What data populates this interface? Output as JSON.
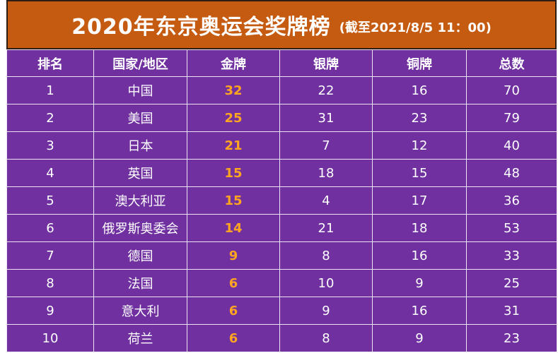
{
  "title": {
    "main": "2020年东京奥运会奖牌榜",
    "note": "(截至2021/8/5 11：00)"
  },
  "table": {
    "headers": [
      "排名",
      "国家/地区",
      "金牌",
      "银牌",
      "铜牌",
      "总数"
    ],
    "rows": [
      [
        "1",
        "中国",
        "32",
        "22",
        "16",
        "70"
      ],
      [
        "2",
        "美国",
        "25",
        "31",
        "23",
        "79"
      ],
      [
        "3",
        "日本",
        "21",
        "7",
        "12",
        "40"
      ],
      [
        "4",
        "英国",
        "15",
        "18",
        "15",
        "48"
      ],
      [
        "5",
        "澳大利亚",
        "15",
        "4",
        "17",
        "36"
      ],
      [
        "6",
        "俄罗斯奥委会",
        "14",
        "21",
        "18",
        "53"
      ],
      [
        "7",
        "德国",
        "9",
        "8",
        "16",
        "33"
      ],
      [
        "8",
        "法国",
        "6",
        "10",
        "9",
        "25"
      ],
      [
        "9",
        "意大利",
        "6",
        "9",
        "16",
        "31"
      ],
      [
        "10",
        "荷兰",
        "6",
        "8",
        "9",
        "23"
      ]
    ]
  },
  "colors": {
    "title_bg": "#c55a11",
    "table_bg": "#7030a0",
    "gold_text": "#ffa51f",
    "text": "#ffffff"
  }
}
